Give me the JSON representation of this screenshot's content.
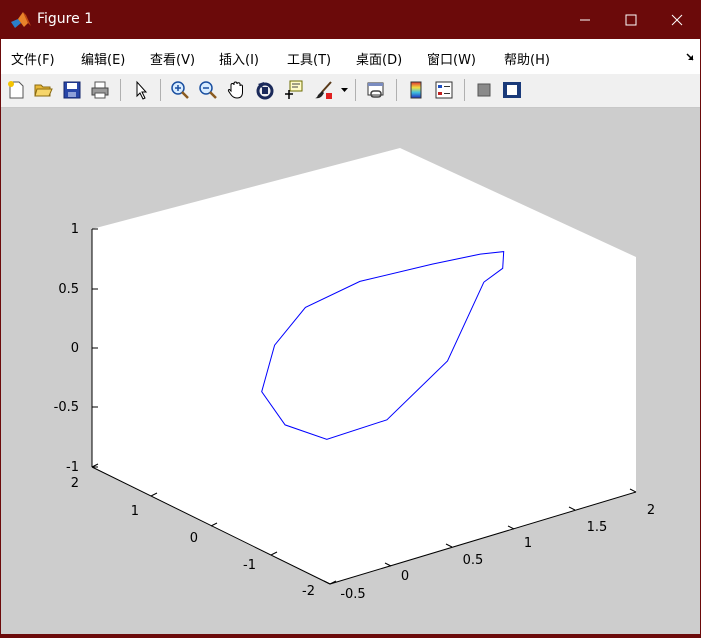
{
  "window": {
    "title": "Figure 1",
    "controls": [
      "minimize-icon",
      "maximize-icon",
      "close-icon"
    ]
  },
  "menubar": {
    "items": [
      {
        "label": "文件(F)"
      },
      {
        "label": "编辑(E)"
      },
      {
        "label": "查看(V)"
      },
      {
        "label": "插入(I)"
      },
      {
        "label": "工具(T)"
      },
      {
        "label": "桌面(D)"
      },
      {
        "label": "窗口(W)"
      },
      {
        "label": "帮助(H)"
      }
    ]
  },
  "toolbar": {
    "buttons": [
      "new-figure-icon",
      "open-file-icon",
      "save-icon",
      "print-icon",
      "edit-plot-arrow-icon",
      "zoom-in-icon",
      "zoom-out-icon",
      "pan-hand-icon",
      "rotate-3d-icon",
      "data-cursor-icon",
      "brush-icon",
      "link-plot-icon",
      "colorbar-icon",
      "legend-icon",
      "hide-plot-tools-icon",
      "show-plot-tools-icon"
    ]
  },
  "chart_data": {
    "type": "line",
    "projection": "3d",
    "series": [
      {
        "color": "#0000ff",
        "x": [
          1.0,
          1.3,
          1.6,
          1.7,
          1.6,
          1.3,
          1.0,
          0.7,
          0.4,
          0.3,
          0.3,
          0.5,
          0.8,
          1.0
        ],
        "y": [
          -1.5,
          -1.2,
          -0.6,
          0.0,
          0.6,
          1.2,
          1.5,
          1.4,
          1.0,
          0.4,
          -0.3,
          -0.9,
          -1.3,
          -1.5
        ],
        "z": [
          0.95,
          0.9,
          0.8,
          0.6,
          0.4,
          0.2,
          0.0,
          -0.2,
          -0.4,
          -0.5,
          -0.45,
          -0.2,
          0.3,
          0.95
        ]
      }
    ],
    "axes": {
      "z_ticks": [
        "1",
        "0.5",
        "0",
        "-0.5",
        "-1"
      ],
      "y_ticks": [
        "2",
        "1",
        "0",
        "-1",
        "-2"
      ],
      "x_ticks": [
        "-0.5",
        "0",
        "0.5",
        "1",
        "1.5",
        "2"
      ],
      "xlim": [
        -0.5,
        2
      ],
      "ylim": [
        -2,
        2
      ],
      "zlim": [
        -1,
        1
      ],
      "grid": false
    }
  }
}
